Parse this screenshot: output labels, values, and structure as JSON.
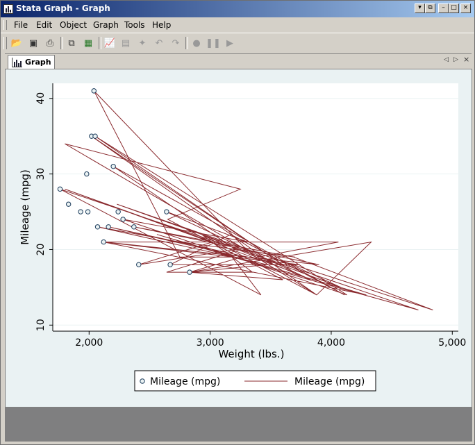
{
  "window": {
    "title": "Stata Graph - Graph",
    "controls": [
      "▾",
      "⧉",
      "–",
      "□",
      "×"
    ]
  },
  "menu": {
    "items": [
      "File",
      "Edit",
      "Object",
      "Graph",
      "Tools",
      "Help"
    ]
  },
  "toolbar": {
    "icons": [
      "open-icon",
      "save-icon",
      "print-icon",
      "copy-icon",
      "copy-graph-icon",
      "graph-editor-icon",
      "properties-icon",
      "pointer-icon",
      "undo-icon",
      "redo-icon",
      "record-icon",
      "pause-icon",
      "play-icon"
    ]
  },
  "tab": {
    "label": "Graph"
  },
  "colors": {
    "plot_bg": "#ffffff",
    "outer_bg": "#eaf2f3",
    "line": "#8a2a2e",
    "gray_bar": "#7f7f80"
  },
  "chart_data": {
    "type": "scatter",
    "xlabel": "Weight (lbs.)",
    "ylabel": "Mileage (mpg)",
    "xlim": [
      1700,
      5050
    ],
    "ylim": [
      9.2,
      42
    ],
    "xticks": [
      2000,
      3000,
      4000,
      5000
    ],
    "xtick_labels": [
      "2,000",
      "3,000",
      "4,000",
      "5,000"
    ],
    "yticks": [
      10,
      20,
      30,
      40
    ],
    "ytick_labels": [
      "10",
      "20",
      "30",
      "40"
    ],
    "grid": true,
    "legend": {
      "position": "bottom",
      "entries": [
        {
          "label": "Mileage (mpg)",
          "kind": "marker"
        },
        {
          "label": "Mileage (mpg)",
          "kind": "line"
        }
      ]
    },
    "series": [
      {
        "name": "Mileage (mpg)",
        "kind": "scatter-marker",
        "points": [
          [
            1760,
            28
          ],
          [
            1830,
            26
          ],
          [
            1930,
            25
          ],
          [
            1980,
            30
          ],
          [
            1990,
            25
          ],
          [
            2020,
            35
          ],
          [
            2040,
            41
          ],
          [
            2050,
            35
          ],
          [
            2070,
            23
          ],
          [
            2120,
            21
          ],
          [
            2160,
            23
          ],
          [
            2200,
            31
          ],
          [
            2240,
            25
          ],
          [
            2280,
            24
          ],
          [
            2370,
            23
          ],
          [
            2410,
            18
          ],
          [
            2640,
            25
          ],
          [
            2670,
            18
          ],
          [
            2830,
            17
          ]
        ]
      },
      {
        "name": "Mileage (mpg)",
        "kind": "line",
        "points": [
          [
            2930,
            22
          ],
          [
            3350,
            17
          ],
          [
            2640,
            17
          ],
          [
            3250,
            20
          ],
          [
            4080,
            15
          ],
          [
            3670,
            18
          ],
          [
            2230,
            26
          ],
          [
            3280,
            20
          ],
          [
            3880,
            14
          ],
          [
            4330,
            21
          ],
          [
            2830,
            17
          ],
          [
            3600,
            16
          ],
          [
            2650,
            24
          ],
          [
            3250,
            28
          ],
          [
            1800,
            34
          ],
          [
            3400,
            19
          ],
          [
            4060,
            21
          ],
          [
            2130,
            21
          ],
          [
            3900,
            18
          ],
          [
            2370,
            23
          ],
          [
            3690,
            19
          ],
          [
            4840,
            12
          ],
          [
            3300,
            20
          ],
          [
            2040,
            41
          ],
          [
            2750,
            19
          ],
          [
            3180,
            19
          ],
          [
            3420,
            14
          ],
          [
            1760,
            28
          ],
          [
            4720,
            12
          ],
          [
            3820,
            16
          ],
          [
            2560,
            22
          ],
          [
            4290,
            14
          ],
          [
            2120,
            21
          ],
          [
            3740,
            18
          ],
          [
            2670,
            18
          ],
          [
            3170,
            22
          ],
          [
            4110,
            14
          ],
          [
            2200,
            31
          ],
          [
            3210,
            20
          ],
          [
            2410,
            18
          ],
          [
            3020,
            21
          ],
          [
            1800,
            28
          ],
          [
            3690,
            17
          ],
          [
            2050,
            35
          ],
          [
            4130,
            14
          ],
          [
            2280,
            24
          ],
          [
            3310,
            21
          ],
          [
            2640,
            25
          ],
          [
            3830,
            16
          ],
          [
            2930,
            22
          ],
          [
            3880,
            14
          ],
          [
            2020,
            35
          ],
          [
            3600,
            18
          ],
          [
            2160,
            23
          ],
          [
            3260,
            19
          ],
          [
            2830,
            17
          ],
          [
            3470,
            18
          ],
          [
            2070,
            23
          ],
          [
            2750,
            21
          ],
          [
            3700,
            19
          ]
        ]
      }
    ]
  }
}
